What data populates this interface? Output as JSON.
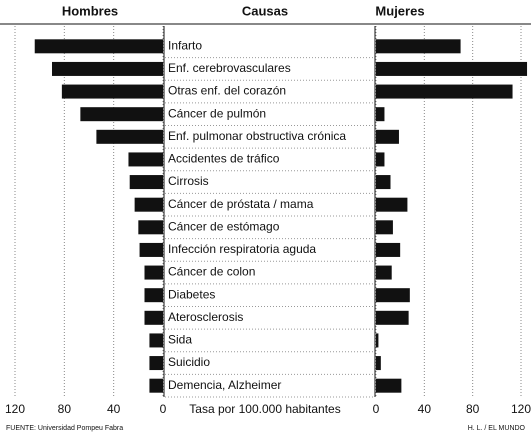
{
  "chart_data": {
    "type": "butterfly",
    "category_label": "Causas",
    "xlabel": "Tasa por 100.000 habitantes",
    "source": "FUENTE: Universidad Pompeu Fabra",
    "credit": "H. L. / EL MUNDO",
    "categories": [
      "Infarto",
      "Enf. cerebrovasculares",
      "Otras enf. del corazón",
      "Cáncer de pulmón",
      "Enf. pulmonar obstructiva crónica",
      "Accidentes de tráfico",
      "Cirrosis",
      "Cáncer de próstata / mama",
      "Cáncer de estómago",
      "Infección respiratoria aguda",
      "Cáncer de colon",
      "Diabetes",
      "Aterosclerosis",
      "Sida",
      "Suicidio",
      "Demencia, Alzheimer"
    ],
    "series": [
      {
        "name": "Hombres",
        "color": "#111111",
        "values": [
          104,
          90,
          82,
          67,
          54,
          28,
          27,
          23,
          20,
          19,
          15,
          15,
          15,
          11,
          11,
          11
        ]
      },
      {
        "name": "Mujeres",
        "color": "#111111",
        "values": [
          70,
          125,
          113,
          7,
          19,
          7,
          12,
          26,
          14,
          20,
          13,
          28,
          27,
          2,
          4,
          21
        ]
      }
    ],
    "xlim": [
      0,
      120
    ],
    "xticks": [
      0,
      40,
      80,
      120
    ],
    "grid": true
  }
}
